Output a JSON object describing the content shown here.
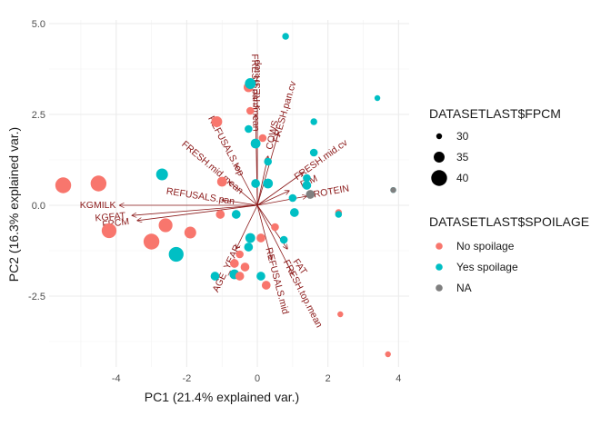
{
  "chart_data": {
    "type": "scatter",
    "subtype": "pca-biplot",
    "title": "",
    "xlabel": "PC1 (21.4% explained var.)",
    "ylabel": "PC2 (16.3% explained var.)",
    "xlim": [
      -5.9,
      4.3
    ],
    "ylim": [
      -4.45,
      5.1
    ],
    "x_ticks": [
      -4,
      -2,
      0,
      2,
      4
    ],
    "y_ticks": [
      -2.5,
      0.0,
      2.5,
      5.0
    ],
    "y_tick_labels": [
      "-2.5",
      "0.0",
      "2.5",
      "5.0"
    ],
    "grid": true,
    "legend_position": "right",
    "colors": {
      "No spoilage": "#F8766D",
      "Yes spoilage": "#00BFC4",
      "NA": "#7F7F7F",
      "loadings": "#8B1A1A"
    },
    "size_legend": {
      "title": "DATASETLAST$FPCM",
      "values": [
        30,
        35,
        40
      ]
    },
    "color_legend": {
      "title": "DATASETLAST$SPOILAGE",
      "entries": [
        "No spoilage",
        "Yes spoilage",
        "NA"
      ]
    },
    "loadings": [
      {
        "label": "FRESH.top",
        "x": 0.0,
        "y": 2.75
      },
      {
        "label": "FRESH.pan.mean",
        "x": -0.05,
        "y": 2.5
      },
      {
        "label": "FRESH.pan.cv",
        "x": 0.6,
        "y": 2.0
      },
      {
        "label": "COWS",
        "x": 0.3,
        "y": 1.35
      },
      {
        "label": "FRESH.mid.cv",
        "x": 1.3,
        "y": 0.9
      },
      {
        "label": "REFUSALS.top",
        "x": -0.6,
        "y": 1.1
      },
      {
        "label": "FRESH.mid.mean",
        "x": -0.8,
        "y": 0.65
      },
      {
        "label": "DIM",
        "x": 0.9,
        "y": 0.4
      },
      {
        "label": "PROTEIN",
        "x": 1.4,
        "y": 0.25
      },
      {
        "label": "REFUSALS.pan",
        "x": -1.0,
        "y": 0.15
      },
      {
        "label": "KGMILK",
        "x": -3.9,
        "y": 0.0
      },
      {
        "label": "KGFAT",
        "x": -3.55,
        "y": -0.28
      },
      {
        "label": "FPCM",
        "x": -3.4,
        "y": -0.42
      },
      {
        "label": "AGE_YEAR",
        "x": -0.6,
        "y": -1.2
      },
      {
        "label": "FAT",
        "x": 0.85,
        "y": -1.2
      },
      {
        "label": "REFUSALS.mid",
        "x": 0.4,
        "y": -1.5
      },
      {
        "label": "FRESH.top.mean",
        "x": 1.0,
        "y": -1.9
      }
    ],
    "points": [
      {
        "x": -5.5,
        "y": 0.55,
        "group": "No spoilage",
        "fpcm": 40
      },
      {
        "x": -4.5,
        "y": 0.6,
        "group": "No spoilage",
        "fpcm": 40
      },
      {
        "x": -4.2,
        "y": -0.7,
        "group": "No spoilage",
        "fpcm": 39
      },
      {
        "x": -3.0,
        "y": -1.0,
        "group": "No spoilage",
        "fpcm": 40
      },
      {
        "x": -2.6,
        "y": -0.55,
        "group": "No spoilage",
        "fpcm": 38
      },
      {
        "x": -2.3,
        "y": -1.35,
        "group": "Yes spoilage",
        "fpcm": 39
      },
      {
        "x": -1.9,
        "y": -0.75,
        "group": "No spoilage",
        "fpcm": 36
      },
      {
        "x": -2.7,
        "y": 0.85,
        "group": "Yes spoilage",
        "fpcm": 36
      },
      {
        "x": -1.15,
        "y": 2.3,
        "group": "No spoilage",
        "fpcm": 35
      },
      {
        "x": -1.0,
        "y": 0.65,
        "group": "No spoilage",
        "fpcm": 34
      },
      {
        "x": -1.05,
        "y": -0.25,
        "group": "No spoilage",
        "fpcm": 33
      },
      {
        "x": -0.6,
        "y": -0.25,
        "group": "Yes spoilage",
        "fpcm": 33
      },
      {
        "x": -0.25,
        "y": 3.25,
        "group": "No spoilage",
        "fpcm": 34
      },
      {
        "x": -0.2,
        "y": 3.35,
        "group": "Yes spoilage",
        "fpcm": 35
      },
      {
        "x": -0.2,
        "y": 2.6,
        "group": "No spoilage",
        "fpcm": 32
      },
      {
        "x": -0.25,
        "y": 2.1,
        "group": "Yes spoilage",
        "fpcm": 32
      },
      {
        "x": 0.15,
        "y": 1.85,
        "group": "No spoilage",
        "fpcm": 32
      },
      {
        "x": -0.05,
        "y": 1.7,
        "group": "Yes spoilage",
        "fpcm": 34
      },
      {
        "x": 0.3,
        "y": 1.2,
        "group": "Yes spoilage",
        "fpcm": 32
      },
      {
        "x": -0.05,
        "y": 0.6,
        "group": "Yes spoilage",
        "fpcm": 33
      },
      {
        "x": 0.3,
        "y": 0.6,
        "group": "Yes spoilage",
        "fpcm": 34
      },
      {
        "x": 0.8,
        "y": 4.65,
        "group": "Yes spoilage",
        "fpcm": 31
      },
      {
        "x": 3.4,
        "y": 2.95,
        "group": "Yes spoilage",
        "fpcm": 30
      },
      {
        "x": 1.6,
        "y": 2.3,
        "group": "Yes spoilage",
        "fpcm": 31
      },
      {
        "x": 1.6,
        "y": 1.45,
        "group": "Yes spoilage",
        "fpcm": 32
      },
      {
        "x": 1.4,
        "y": 0.75,
        "group": "Yes spoilage",
        "fpcm": 32
      },
      {
        "x": 1.4,
        "y": 0.55,
        "group": "Yes spoilage",
        "fpcm": 33
      },
      {
        "x": 1.5,
        "y": 0.3,
        "group": "NA",
        "fpcm": 33
      },
      {
        "x": 1.0,
        "y": 0.2,
        "group": "Yes spoilage",
        "fpcm": 32
      },
      {
        "x": 1.05,
        "y": -0.2,
        "group": "Yes spoilage",
        "fpcm": 33
      },
      {
        "x": 0.5,
        "y": -0.6,
        "group": "No spoilage",
        "fpcm": 32
      },
      {
        "x": 0.75,
        "y": -0.95,
        "group": "Yes spoilage",
        "fpcm": 32
      },
      {
        "x": 2.3,
        "y": -0.2,
        "group": "No spoilage",
        "fpcm": 31
      },
      {
        "x": 2.3,
        "y": -0.25,
        "group": "Yes spoilage",
        "fpcm": 31
      },
      {
        "x": 0.1,
        "y": -0.9,
        "group": "No spoilage",
        "fpcm": 33
      },
      {
        "x": -0.2,
        "y": -0.9,
        "group": "Yes spoilage",
        "fpcm": 34
      },
      {
        "x": -0.25,
        "y": -1.15,
        "group": "Yes spoilage",
        "fpcm": 33
      },
      {
        "x": -0.5,
        "y": -1.35,
        "group": "No spoilage",
        "fpcm": 32
      },
      {
        "x": -0.65,
        "y": -1.6,
        "group": "No spoilage",
        "fpcm": 33
      },
      {
        "x": -0.35,
        "y": -1.7,
        "group": "No spoilage",
        "fpcm": 33
      },
      {
        "x": -0.65,
        "y": -1.9,
        "group": "Yes spoilage",
        "fpcm": 34
      },
      {
        "x": -0.5,
        "y": -1.95,
        "group": "No spoilage",
        "fpcm": 33
      },
      {
        "x": 0.1,
        "y": -1.95,
        "group": "Yes spoilage",
        "fpcm": 33
      },
      {
        "x": 0.25,
        "y": -2.2,
        "group": "No spoilage",
        "fpcm": 33
      },
      {
        "x": -1.2,
        "y": -1.95,
        "group": "Yes spoilage",
        "fpcm": 33
      },
      {
        "x": 2.35,
        "y": -3.0,
        "group": "No spoilage",
        "fpcm": 30
      },
      {
        "x": 3.7,
        "y": -4.1,
        "group": "No spoilage",
        "fpcm": 30
      },
      {
        "x": 3.85,
        "y": 0.42,
        "group": "Yes spoilage",
        "fpcm": 30
      },
      {
        "x": 3.85,
        "y": 0.42,
        "group": "NA",
        "fpcm": 30
      }
    ]
  }
}
